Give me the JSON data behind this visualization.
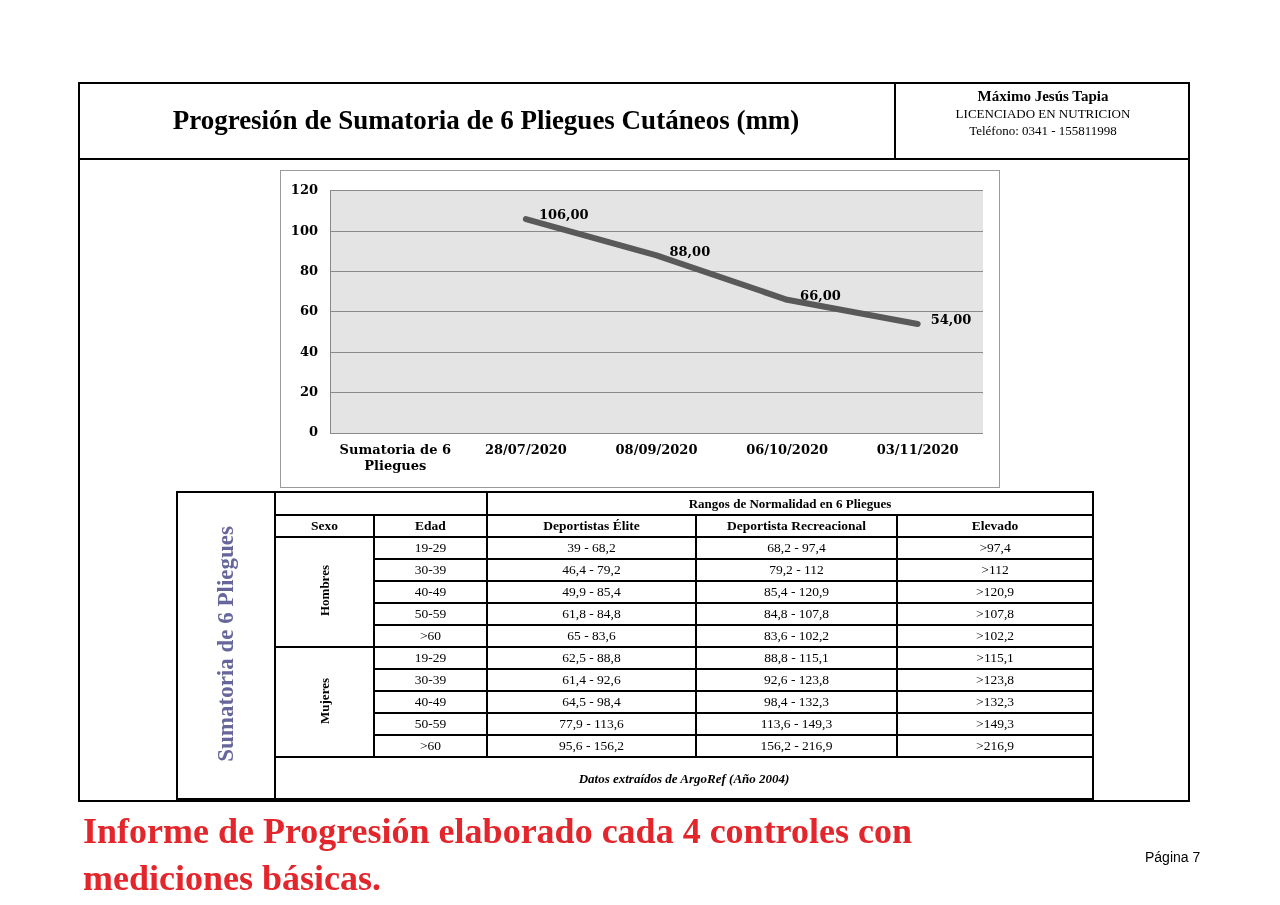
{
  "chart_data": [
    {
      "type": "line",
      "title": "Progresión de Sumatoria de 6 Pliegues Cutáneos (mm)",
      "categories": [
        "Sumatoria de 6 Pliegues",
        "28/07/2020",
        "08/09/2020",
        "06/10/2020",
        "03/11/2020"
      ],
      "values": [
        null,
        106,
        88,
        66,
        54
      ],
      "value_labels": [
        null,
        "106,00",
        "88,00",
        "66,00",
        "54,00"
      ],
      "color": "#595959",
      "ylim": [
        0,
        120
      ],
      "yticks": [
        0,
        20,
        40,
        60,
        80,
        100,
        120
      ],
      "grid": "y",
      "annotations": [
        "Máximo Jesús Tapia",
        "LICENCIADO EN NUTRICION",
        "Teléfono: 0341 - 155811998",
        "Informe de Progresión elaborado cada 4 controles con mediciones básicas.",
        "Página 7"
      ]
    },
    {
      "type": "other",
      "title": "Rangos de Normalidad en 6 Pliegues",
      "ylabel": "Sumatoria de 6 Pliegues",
      "categories": [
        "Sexo",
        "Edad",
        "Deportistas Élite",
        "Deportista Recreacional",
        "Elevado"
      ],
      "cell_labels": [
        [
          "Hombres",
          "19-29",
          "39 - 68,2",
          "68,2 - 97,4",
          ">97,4"
        ],
        [
          null,
          "30-39",
          "46,4 - 79,2",
          "79,2 - 112",
          ">112"
        ],
        [
          null,
          "40-49",
          "49,9 - 85,4",
          "85,4 - 120,9",
          ">120,9"
        ],
        [
          null,
          "50-59",
          "61,8 - 84,8",
          "84,8 - 107,8",
          ">107,8"
        ],
        [
          null,
          ">60",
          "65 - 83,6",
          "83,6 - 102,2",
          ">102,2"
        ],
        [
          "Mujeres",
          "19-29",
          "62,5 - 88,8",
          "88,8 - 115,1",
          ">115,1"
        ],
        [
          null,
          "30-39",
          "61,4 - 92,6",
          "92,6 - 123,8",
          ">123,8"
        ],
        [
          null,
          "40-49",
          "64,5 - 98,4",
          "98,4 - 132,3",
          ">132,3"
        ],
        [
          null,
          "50-59",
          "77,9 - 113,6",
          "113,6 - 149,3",
          ">149,3"
        ],
        [
          null,
          ">60",
          "95,6 - 156,2",
          "156,2 - 216,9",
          ">216,9"
        ]
      ],
      "annotations": [
        "Datos extraídos de ArgoRef (Año 2004)"
      ]
    }
  ]
}
